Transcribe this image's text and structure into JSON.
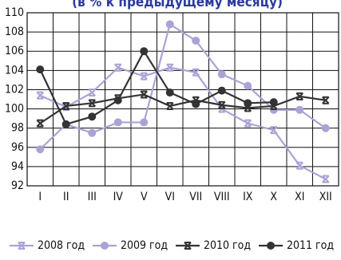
{
  "chart_data": {
    "type": "line",
    "title": "(в % к предыдущему месяцу)",
    "categories": [
      "I",
      "II",
      "III",
      "IV",
      "V",
      "VI",
      "VII",
      "VIII",
      "IX",
      "X",
      "XI",
      "XII"
    ],
    "series": [
      {
        "name": "2008 год",
        "color": "#a9a3d6",
        "marker": "cross",
        "values": [
          101.4,
          100.2,
          101.7,
          104.3,
          103.4,
          104.3,
          103.8,
          100.0,
          98.5,
          97.8,
          94.1,
          92.7
        ]
      },
      {
        "name": "2009 год",
        "color": "#a9a3d6",
        "marker": "circle",
        "values": [
          95.8,
          98.4,
          97.5,
          98.6,
          98.6,
          108.8,
          107.1,
          103.6,
          102.4,
          99.9,
          99.9,
          98.0
        ]
      },
      {
        "name": "2010 год",
        "color": "#333333",
        "marker": "cross",
        "values": [
          98.5,
          100.3,
          100.6,
          101.1,
          101.5,
          100.3,
          100.9,
          100.4,
          100.1,
          100.3,
          101.3,
          100.9
        ]
      },
      {
        "name": "2011 год",
        "color": "#333333",
        "marker": "circle",
        "values": [
          104.1,
          98.4,
          99.2,
          100.9,
          106.0,
          101.7,
          100.5,
          101.9,
          100.6,
          100.7,
          null,
          null
        ]
      }
    ],
    "ylim": [
      92,
      110
    ],
    "yticks": [
      92,
      94,
      96,
      98,
      100,
      102,
      104,
      106,
      108,
      110
    ],
    "grid": true,
    "legend": "bottom"
  }
}
